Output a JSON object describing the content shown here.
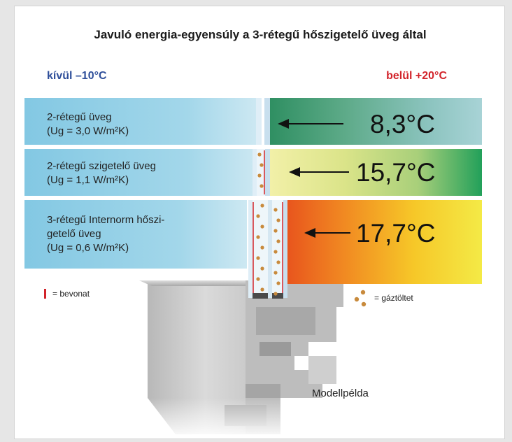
{
  "title": "Javuló energia-egyensúly a 3-rétegű hőszigetelő üveg által",
  "outside_label": "kívül –10°C",
  "inside_label": "belül +20°C",
  "rows": [
    {
      "line1": "2-rétegű üveg",
      "line2": "(Ug = 3,0 W/m²K)",
      "temperature": "8,3°C"
    },
    {
      "line1": "2-rétegű szigetelő üveg",
      "line2": "(Ug = 1,1 W/m²K)",
      "temperature": "15,7°C"
    },
    {
      "line1": "3-rétegű Internorm hőszi-",
      "line2": "getelő üveg",
      "line3": "(Ug = 0,6 W/m²K)",
      "temperature": "17,7°C"
    }
  ],
  "legend": {
    "coating": "= bevonat",
    "gas_fill": "= gáztöltet"
  },
  "caption": "Modellpélda",
  "colors": {
    "outside": "#2f4f9a",
    "inside": "#d2232a",
    "coating": "#d2232a",
    "gas": "#c88a3c"
  }
}
